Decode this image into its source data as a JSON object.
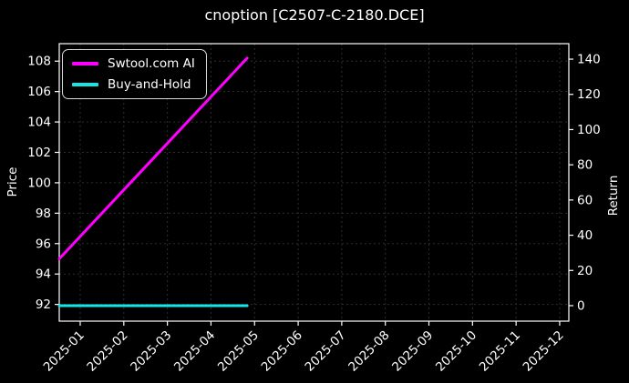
{
  "window": {
    "title": "cnoption [C2507-C-2180.DCE]"
  },
  "colors": {
    "background": "#000000",
    "text": "#ffffff",
    "spine": "#ffffff",
    "grid": "#2e2e2e",
    "series_ai": "#ff00ff",
    "series_bh": "#17e5e5"
  },
  "legend": {
    "position": "top-left",
    "items": [
      {
        "label": "Swtool.com AI",
        "color": "#ff00ff"
      },
      {
        "label": "Buy-and-Hold",
        "color": "#17e5e5"
      }
    ]
  },
  "chart_data": {
    "type": "line",
    "title": "cnoption [C2507-C-2180.DCE]",
    "xlabel": "",
    "x_tick_labels": [
      "2025-01",
      "2025-02",
      "2025-03",
      "2025-04",
      "2025-05",
      "2025-06",
      "2025-07",
      "2025-08",
      "2025-09",
      "2025-10",
      "2025-11",
      "2025-12"
    ],
    "x_tick_rotation_deg": -45,
    "x_range_months": [
      -0.481,
      11.21
    ],
    "left_axis": {
      "label": "Price",
      "ticks": [
        92,
        94,
        96,
        98,
        100,
        102,
        104,
        106,
        108
      ],
      "range": [
        90.9,
        109.15
      ]
    },
    "right_axis": {
      "label": "Return",
      "ticks": [
        0,
        20,
        40,
        60,
        80,
        100,
        120,
        140
      ],
      "range": [
        -8.8,
        148.8
      ]
    },
    "grid": {
      "visible": true,
      "style": "dashed",
      "color": "#2e2e2e"
    },
    "series": [
      {
        "name": "Swtool.com AI",
        "color": "#ff00ff",
        "axis": "left",
        "line_width": 3,
        "points": [
          {
            "x": -0.481,
            "y": 95.0
          },
          {
            "x": 3.83,
            "y": 108.2
          }
        ]
      },
      {
        "name": "Buy-and-Hold",
        "color": "#17e5e5",
        "axis": "right",
        "line_width": 3,
        "points": [
          {
            "x": -0.481,
            "y": 0
          },
          {
            "x": 3.83,
            "y": 0
          }
        ]
      }
    ]
  }
}
